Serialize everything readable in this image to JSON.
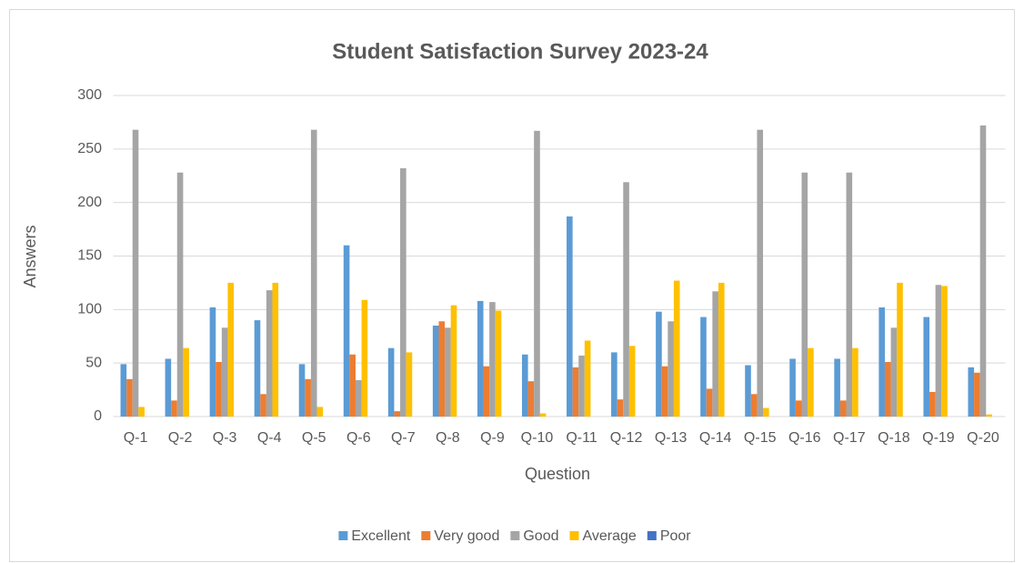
{
  "chart_data": {
    "type": "bar",
    "title": "Student Satisfaction Survey 2023-24",
    "x_label": "Question",
    "y_label": "Answers",
    "categories": [
      "Q-1",
      "Q-2",
      "Q-3",
      "Q-4",
      "Q-5",
      "Q-6",
      "Q-7",
      "Q-8",
      "Q-9",
      "Q-10",
      "Q-11",
      "Q-12",
      "Q-13",
      "Q-14",
      "Q-15",
      "Q-16",
      "Q-17",
      "Q-18",
      "Q-19",
      "Q-20"
    ],
    "series": [
      {
        "name": "Excellent",
        "color": "#5b9bd5",
        "values": [
          49,
          54,
          102,
          90,
          49,
          160,
          64,
          85,
          108,
          58,
          187,
          60,
          98,
          93,
          48,
          54,
          54,
          102,
          93,
          46
        ]
      },
      {
        "name": "Very good",
        "color": "#ed7d31",
        "values": [
          35,
          15,
          51,
          21,
          35,
          58,
          5,
          89,
          47,
          33,
          46,
          16,
          47,
          26,
          21,
          15,
          15,
          51,
          23,
          41
        ]
      },
      {
        "name": "Good",
        "color": "#a5a5a5",
        "values": [
          268,
          228,
          83,
          118,
          268,
          34,
          232,
          83,
          107,
          267,
          57,
          219,
          89,
          117,
          268,
          228,
          228,
          83,
          123,
          272
        ]
      },
      {
        "name": "Average",
        "color": "#ffc000",
        "values": [
          9,
          64,
          125,
          125,
          9,
          109,
          60,
          104,
          99,
          3,
          71,
          66,
          127,
          125,
          8,
          64,
          64,
          125,
          122,
          2
        ]
      },
      {
        "name": "Poor",
        "color": "#4472c4",
        "values": [
          0,
          0,
          0,
          0,
          0,
          0,
          0,
          0,
          0,
          0,
          0,
          0,
          0,
          0,
          0,
          0,
          0,
          0,
          0,
          0
        ]
      }
    ],
    "ylim": [
      0,
      300
    ],
    "yticks": [
      0,
      50,
      100,
      150,
      200,
      250,
      300
    ],
    "grid": true,
    "legend": "bottom"
  }
}
